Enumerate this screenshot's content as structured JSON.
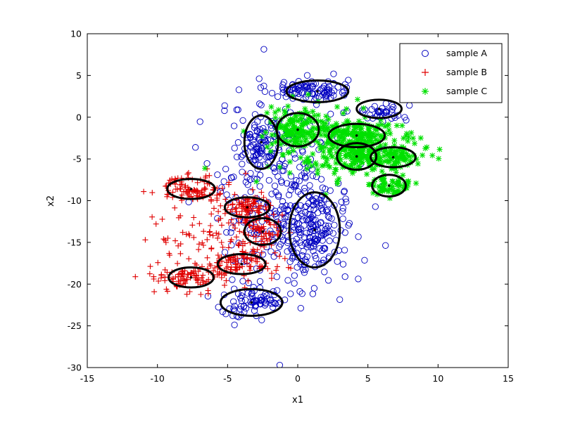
{
  "chart_data": {
    "type": "scatter",
    "title": "",
    "xlabel": "x1",
    "ylabel": "x2",
    "xlim": [
      -15,
      15
    ],
    "ylim": [
      -30,
      10
    ],
    "xticks": [
      -15,
      -10,
      -5,
      0,
      5,
      10,
      15
    ],
    "yticks": [
      -30,
      -25,
      -20,
      -15,
      -10,
      -5,
      0,
      5,
      10
    ],
    "grid": false,
    "legend_position": "top-right",
    "series": [
      {
        "name": "sample A",
        "marker": "circle-open",
        "color": "#0000c0",
        "clusters": [
          {
            "center": [
              0.7,
              3.3
            ],
            "spread": [
              1.9,
              0.9
            ],
            "count": 90
          },
          {
            "center": [
              5.8,
              0.6
            ],
            "spread": [
              1.4,
              0.7
            ],
            "count": 40
          },
          {
            "center": [
              -2.6,
              -3.0
            ],
            "spread": [
              0.9,
              2.3
            ],
            "count": 70
          },
          {
            "center": [
              1.2,
              -13.5
            ],
            "spread": [
              1.3,
              3.2
            ],
            "count": 110
          },
          {
            "center": [
              -3.3,
              -22.2
            ],
            "spread": [
              1.7,
              1.3
            ],
            "count": 70
          },
          {
            "center": [
              -0.8,
              -10.0
            ],
            "spread": [
              3.2,
              8.0
            ],
            "count": 360
          }
        ]
      },
      {
        "name": "sample B",
        "marker": "plus",
        "color": "#e00000",
        "clusters": [
          {
            "center": [
              -7.6,
              -8.6
            ],
            "spread": [
              1.6,
              1.0
            ],
            "count": 90
          },
          {
            "center": [
              -3.6,
              -10.8
            ],
            "spread": [
              1.4,
              1.0
            ],
            "count": 80
          },
          {
            "center": [
              -2.5,
              -13.7
            ],
            "spread": [
              1.0,
              1.4
            ],
            "count": 60
          },
          {
            "center": [
              -4.0,
              -17.6
            ],
            "spread": [
              1.6,
              1.0
            ],
            "count": 80
          },
          {
            "center": [
              -7.6,
              -19.2
            ],
            "spread": [
              1.6,
              1.0
            ],
            "count": 90
          },
          {
            "center": [
              -6.0,
              -14.0
            ],
            "spread": [
              3.0,
              4.0
            ],
            "count": 120
          }
        ]
      },
      {
        "name": "sample C",
        "marker": "asterisk",
        "color": "#00e000",
        "clusters": [
          {
            "center": [
              0.0,
              -1.5
            ],
            "spread": [
              1.5,
              1.7
            ],
            "count": 120
          },
          {
            "center": [
              4.2,
              -2.2
            ],
            "spread": [
              1.8,
              1.1
            ],
            "count": 120
          },
          {
            "center": [
              4.2,
              -4.7
            ],
            "spread": [
              1.2,
              1.1
            ],
            "count": 90
          },
          {
            "center": [
              6.8,
              -4.8
            ],
            "spread": [
              1.4,
              0.9
            ],
            "count": 80
          },
          {
            "center": [
              6.5,
              -8.2
            ],
            "spread": [
              1.1,
              0.9
            ],
            "count": 60
          },
          {
            "center": [
              3.0,
              -3.5
            ],
            "spread": [
              4.0,
              3.5
            ],
            "count": 200
          }
        ]
      }
    ],
    "ellipses": [
      {
        "center": [
          1.4,
          3.1
        ],
        "radii": [
          2.2,
          1.3
        ]
      },
      {
        "center": [
          5.8,
          1.0
        ],
        "radii": [
          1.6,
          1.1
        ]
      },
      {
        "center": [
          -2.6,
          -3.0
        ],
        "radii": [
          1.2,
          3.2
        ]
      },
      {
        "center": [
          0.0,
          -1.5
        ],
        "radii": [
          1.5,
          2.0
        ]
      },
      {
        "center": [
          4.2,
          -2.2
        ],
        "radii": [
          2.0,
          1.4
        ]
      },
      {
        "center": [
          4.2,
          -4.7
        ],
        "radii": [
          1.4,
          1.6
        ]
      },
      {
        "center": [
          6.8,
          -4.8
        ],
        "radii": [
          1.6,
          1.2
        ]
      },
      {
        "center": [
          6.5,
          -8.2
        ],
        "radii": [
          1.2,
          1.3
        ]
      },
      {
        "center": [
          -7.6,
          -8.6
        ],
        "radii": [
          1.7,
          1.2
        ]
      },
      {
        "center": [
          -3.6,
          -10.8
        ],
        "radii": [
          1.6,
          1.2
        ]
      },
      {
        "center": [
          -2.5,
          -13.7
        ],
        "radii": [
          1.3,
          1.6
        ]
      },
      {
        "center": [
          1.2,
          -13.5
        ],
        "radii": [
          1.8,
          4.5
        ]
      },
      {
        "center": [
          -4.0,
          -17.6
        ],
        "radii": [
          1.7,
          1.2
        ]
      },
      {
        "center": [
          -7.6,
          -19.2
        ],
        "radii": [
          1.6,
          1.2
        ]
      },
      {
        "center": [
          -3.3,
          -22.2
        ],
        "radii": [
          2.2,
          1.6
        ]
      }
    ]
  }
}
